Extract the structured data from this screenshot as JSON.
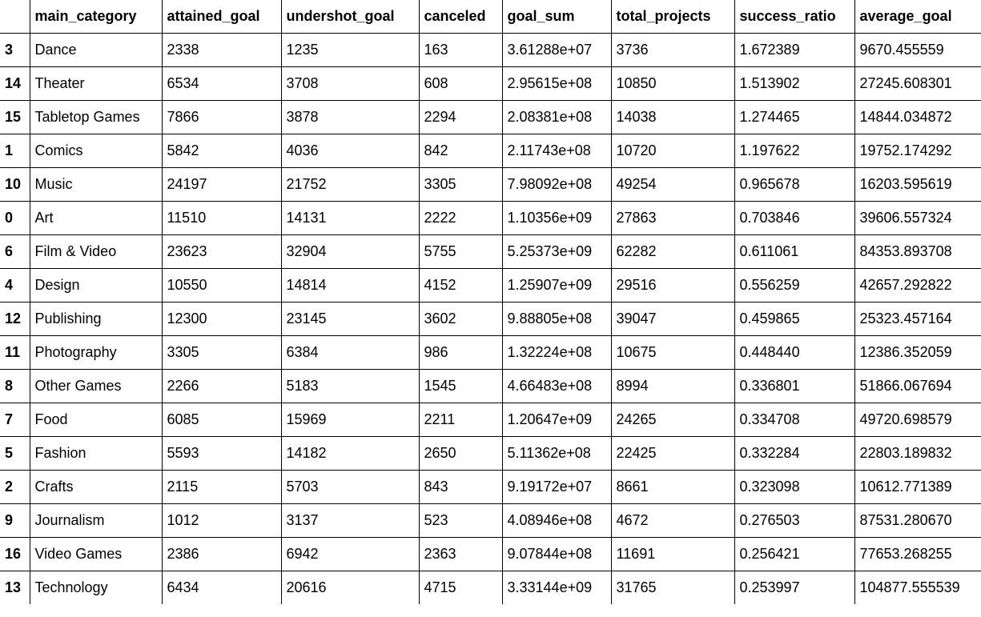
{
  "table": {
    "index_header": "",
    "columns": [
      "main_category",
      "attained_goal",
      "undershot_goal",
      "canceled",
      "goal_sum",
      "total_projects",
      "success_ratio",
      "average_goal"
    ],
    "rows": [
      {
        "index": "3",
        "cells": [
          "Dance",
          "2338",
          "1235",
          "163",
          "3.61288e+07",
          "3736",
          "1.672389",
          "9670.455559"
        ]
      },
      {
        "index": "14",
        "cells": [
          "Theater",
          "6534",
          "3708",
          "608",
          "2.95615e+08",
          "10850",
          "1.513902",
          "27245.608301"
        ]
      },
      {
        "index": "15",
        "cells": [
          "Tabletop Games",
          "7866",
          "3878",
          "2294",
          "2.08381e+08",
          "14038",
          "1.274465",
          "14844.034872"
        ]
      },
      {
        "index": "1",
        "cells": [
          "Comics",
          "5842",
          "4036",
          "842",
          "2.11743e+08",
          "10720",
          "1.197622",
          "19752.174292"
        ]
      },
      {
        "index": "10",
        "cells": [
          "Music",
          "24197",
          "21752",
          "3305",
          "7.98092e+08",
          "49254",
          "0.965678",
          "16203.595619"
        ]
      },
      {
        "index": "0",
        "cells": [
          "Art",
          "11510",
          "14131",
          "2222",
          "1.10356e+09",
          "27863",
          "0.703846",
          "39606.557324"
        ]
      },
      {
        "index": "6",
        "cells": [
          "Film & Video",
          "23623",
          "32904",
          "5755",
          "5.25373e+09",
          "62282",
          "0.611061",
          "84353.893708"
        ]
      },
      {
        "index": "4",
        "cells": [
          "Design",
          "10550",
          "14814",
          "4152",
          "1.25907e+09",
          "29516",
          "0.556259",
          "42657.292822"
        ]
      },
      {
        "index": "12",
        "cells": [
          "Publishing",
          "12300",
          "23145",
          "3602",
          "9.88805e+08",
          "39047",
          "0.459865",
          "25323.457164"
        ]
      },
      {
        "index": "11",
        "cells": [
          "Photography",
          "3305",
          "6384",
          "986",
          "1.32224e+08",
          "10675",
          "0.448440",
          "12386.352059"
        ]
      },
      {
        "index": "8",
        "cells": [
          "Other Games",
          "2266",
          "5183",
          "1545",
          "4.66483e+08",
          "8994",
          "0.336801",
          "51866.067694"
        ]
      },
      {
        "index": "7",
        "cells": [
          "Food",
          "6085",
          "15969",
          "2211",
          "1.20647e+09",
          "24265",
          "0.334708",
          "49720.698579"
        ]
      },
      {
        "index": "5",
        "cells": [
          "Fashion",
          "5593",
          "14182",
          "2650",
          "5.11362e+08",
          "22425",
          "0.332284",
          "22803.189832"
        ]
      },
      {
        "index": "2",
        "cells": [
          "Crafts",
          "2115",
          "5703",
          "843",
          "9.19172e+07",
          "8661",
          "0.323098",
          "10612.771389"
        ]
      },
      {
        "index": "9",
        "cells": [
          "Journalism",
          "1012",
          "3137",
          "523",
          "4.08946e+08",
          "4672",
          "0.276503",
          "87531.280670"
        ]
      },
      {
        "index": "16",
        "cells": [
          "Video Games",
          "2386",
          "6942",
          "2363",
          "9.07844e+08",
          "11691",
          "0.256421",
          "77653.268255"
        ]
      },
      {
        "index": "13",
        "cells": [
          "Technology",
          "6434",
          "20616",
          "4715",
          "3.33144e+09",
          "31765",
          "0.253997",
          "104877.555539"
        ]
      }
    ]
  }
}
